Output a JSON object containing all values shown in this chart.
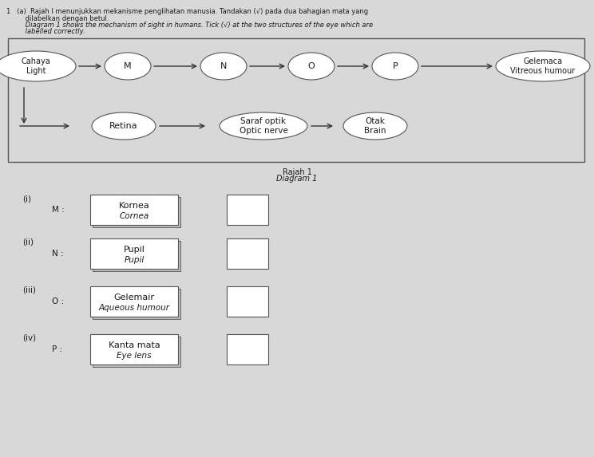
{
  "title_line1": "1   (a)  Rajah I menunjukkan mekanisme penglihatan manusia. Tandakan (√) pada dua bahagian mata yang",
  "title_line2": "         dilabelkan dengan betul.",
  "title_line3": "         Diagram 1 shows the mechanism of sight in humans. Tick (√) at the two structures of the eye which are",
  "title_line4": "         labelled correctly.",
  "top_row_labels": [
    "Cahaya\nLight",
    "M",
    "N",
    "O",
    "P",
    "Gelemaca\nVitreous humour"
  ],
  "bottom_row_labels": [
    "Retina",
    "Saraf optik\nOptic nerve",
    "Otak\nBrain"
  ],
  "diagram_caption_line1": "Rajah 1",
  "diagram_caption_line2": "Diagram 1",
  "items": [
    {
      "roman": "(i)",
      "letter": "M",
      "label_line1": "Kornea",
      "label_line2": "Cornea"
    },
    {
      "roman": "(ii)",
      "letter": "N",
      "label_line1": "Pupil",
      "label_line2": "Pupil"
    },
    {
      "roman": "(iii)",
      "letter": "O",
      "label_line1": "Gelemair",
      "label_line2": "Aqueous humour"
    },
    {
      "roman": "(iv)",
      "letter": "P",
      "label_line1": "Kanta mata",
      "label_line2": "Eye lens"
    }
  ],
  "bg_color": "#d8d8d8",
  "box_color": "#ffffff",
  "ellipse_color": "#ffffff",
  "text_color": "#1a1a1a",
  "border_color": "#555555",
  "arrow_color": "#333333"
}
